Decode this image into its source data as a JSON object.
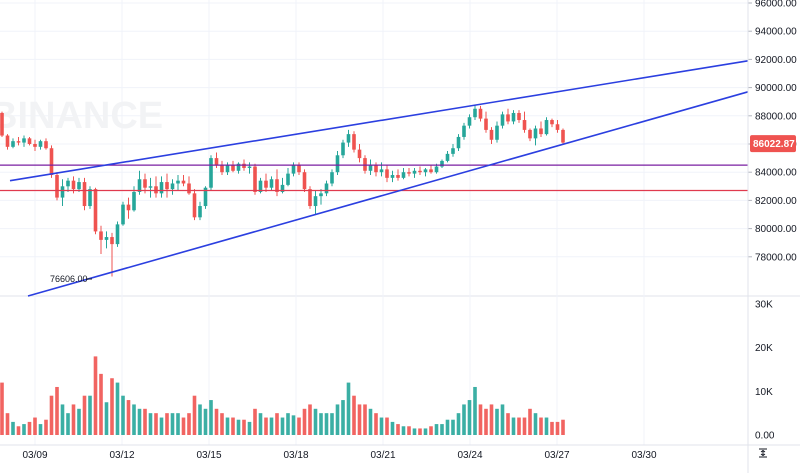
{
  "watermark": "BINANCE",
  "colors": {
    "up": "#26a69a",
    "down": "#ef5350",
    "trendline": "#2b3fe0",
    "support_line": "#e03a4e",
    "resistance_line": "#7a1fa2",
    "last_price_bg": "#ef5350",
    "axis_text": "#131722",
    "grid": "#f0f3fa"
  },
  "last_price_label": "86022.87",
  "low_label": "76606.00",
  "price_axis_ticks": [
    "96000.00",
    "94000.00",
    "92000.00",
    "90000.00",
    "88000.00",
    "86000.00",
    "84000.00",
    "82000.00",
    "80000.00",
    "78000.00"
  ],
  "volume_axis_ticks": [
    "30K",
    "20K",
    "10K",
    "0.00"
  ],
  "date_axis_ticks": [
    "03/09",
    "03/12",
    "03/15",
    "03/18",
    "03/21",
    "03/24",
    "03/27",
    "03/30"
  ],
  "settings_icon": "axis-settings-icon",
  "chart_data": {
    "type": "candlestick",
    "x_unit": "date (4h candles)",
    "y_range": [
      76000,
      96000
    ],
    "volume_range": [
      0,
      30000
    ],
    "horizontal_levels": [
      84500,
      82700
    ],
    "trendlines": [
      {
        "from": [
          "03/08",
          83400
        ],
        "to": [
          "03/31",
          91900
        ]
      },
      {
        "from": [
          "03/08",
          75900
        ],
        "to": [
          "03/31",
          89700
        ]
      }
    ],
    "candles": [
      [
        88200,
        88300,
        86500,
        86600,
        12000
      ],
      [
        86600,
        86700,
        85600,
        85800,
        5000
      ],
      [
        85800,
        86400,
        85700,
        86200,
        3000
      ],
      [
        86200,
        86500,
        85900,
        86100,
        2000
      ],
      [
        86100,
        86600,
        85800,
        86400,
        2500
      ],
      [
        86400,
        86500,
        85900,
        86000,
        3000
      ],
      [
        86000,
        86300,
        85500,
        85800,
        4000
      ],
      [
        85800,
        86300,
        85600,
        86200,
        2500
      ],
      [
        86200,
        86400,
        85600,
        85700,
        3500
      ],
      [
        85700,
        85900,
        83600,
        83800,
        9000
      ],
      [
        83800,
        84000,
        82000,
        82200,
        11000
      ],
      [
        82200,
        83500,
        81600,
        83000,
        7000
      ],
      [
        83000,
        83600,
        82600,
        83400,
        5000
      ],
      [
        83400,
        83700,
        82500,
        82800,
        7000
      ],
      [
        82800,
        83600,
        82600,
        83300,
        6000
      ],
      [
        83300,
        83600,
        81300,
        81600,
        9000
      ],
      [
        81600,
        83000,
        81400,
        82800,
        9000
      ],
      [
        82800,
        82900,
        79600,
        79800,
        18000
      ],
      [
        79800,
        80200,
        78200,
        79200,
        14000
      ],
      [
        79200,
        79800,
        78600,
        79400,
        7500
      ],
      [
        79400,
        79700,
        76606,
        78900,
        13000
      ],
      [
        78900,
        80500,
        78700,
        80300,
        12000
      ],
      [
        80300,
        81900,
        80200,
        81700,
        9000
      ],
      [
        81700,
        82200,
        80700,
        81300,
        8000
      ],
      [
        81300,
        83000,
        81200,
        82600,
        7000
      ],
      [
        82600,
        84100,
        82400,
        83500,
        6000
      ],
      [
        83500,
        83900,
        82500,
        82900,
        6000
      ],
      [
        82900,
        83600,
        82200,
        83000,
        5000
      ],
      [
        83000,
        83700,
        82200,
        82500,
        5000
      ],
      [
        82500,
        83700,
        82200,
        83300,
        4000
      ],
      [
        83300,
        83900,
        82200,
        82800,
        5000
      ],
      [
        82800,
        83500,
        82400,
        83200,
        5000
      ],
      [
        83200,
        83800,
        82700,
        83400,
        5000
      ],
      [
        83400,
        83800,
        83000,
        83200,
        4000
      ],
      [
        83200,
        83700,
        82400,
        82500,
        5000
      ],
      [
        82500,
        82800,
        80600,
        80800,
        9000
      ],
      [
        80800,
        81900,
        80600,
        81600,
        7000
      ],
      [
        81600,
        83000,
        81400,
        82900,
        6000
      ],
      [
        82900,
        85200,
        82700,
        85000,
        8000
      ],
      [
        85000,
        85400,
        84300,
        84500,
        6000
      ],
      [
        84500,
        84800,
        83800,
        84000,
        5000
      ],
      [
        84000,
        84700,
        83800,
        84500,
        4000
      ],
      [
        84500,
        84800,
        84000,
        84100,
        4000
      ],
      [
        84100,
        84700,
        83900,
        84600,
        3500
      ],
      [
        84600,
        84900,
        84100,
        84300,
        3500
      ],
      [
        84300,
        84700,
        83900,
        84400,
        3000
      ],
      [
        84400,
        84600,
        82400,
        82600,
        6000
      ],
      [
        82600,
        83600,
        82500,
        83400,
        5000
      ],
      [
        83400,
        83900,
        82600,
        82900,
        4000
      ],
      [
        82900,
        83700,
        82700,
        83500,
        4000
      ],
      [
        83500,
        84200,
        82300,
        82600,
        5000
      ],
      [
        82600,
        83600,
        82500,
        83100,
        4000
      ],
      [
        83100,
        84300,
        83000,
        83900,
        5000
      ],
      [
        83900,
        84700,
        83700,
        84500,
        4500
      ],
      [
        84500,
        84700,
        83800,
        84000,
        4000
      ],
      [
        84000,
        84200,
        82600,
        82800,
        6000
      ],
      [
        82800,
        83000,
        81400,
        81600,
        7000
      ],
      [
        81600,
        82700,
        81000,
        82300,
        6000
      ],
      [
        82300,
        82800,
        81700,
        82500,
        5000
      ],
      [
        82500,
        83400,
        82300,
        83200,
        5000
      ],
      [
        83200,
        84200,
        83000,
        84000,
        5000
      ],
      [
        84000,
        85500,
        83800,
        85200,
        7000
      ],
      [
        85200,
        86300,
        85000,
        86100,
        8000
      ],
      [
        86100,
        87000,
        85800,
        86700,
        12000
      ],
      [
        86700,
        86900,
        85400,
        85600,
        9000
      ],
      [
        85600,
        86000,
        84700,
        85000,
        7000
      ],
      [
        85000,
        85200,
        83900,
        84100,
        7000
      ],
      [
        84100,
        84900,
        83800,
        84500,
        6000
      ],
      [
        84500,
        84700,
        83700,
        84000,
        5000
      ],
      [
        84000,
        84700,
        83700,
        84200,
        4000
      ],
      [
        84200,
        84500,
        83300,
        83600,
        4000
      ],
      [
        83600,
        84100,
        83300,
        83800,
        3000
      ],
      [
        83800,
        84200,
        83400,
        83600,
        2500
      ],
      [
        83600,
        84300,
        83500,
        84000,
        2000
      ],
      [
        84000,
        84300,
        83700,
        83900,
        2000
      ],
      [
        83900,
        84300,
        83600,
        84100,
        1500
      ],
      [
        84100,
        84400,
        83800,
        84000,
        1500
      ],
      [
        84000,
        84300,
        83700,
        84200,
        1500
      ],
      [
        84200,
        84500,
        83900,
        84000,
        2000
      ],
      [
        84000,
        84600,
        83900,
        84400,
        2500
      ],
      [
        84400,
        84900,
        84300,
        84800,
        2500
      ],
      [
        84800,
        85500,
        84700,
        85300,
        3500
      ],
      [
        85300,
        86000,
        85100,
        85700,
        3500
      ],
      [
        85700,
        86700,
        85500,
        86500,
        5000
      ],
      [
        86500,
        87500,
        86300,
        87300,
        7000
      ],
      [
        87300,
        88100,
        87100,
        87900,
        8000
      ],
      [
        87900,
        88800,
        87700,
        88500,
        11000
      ],
      [
        88500,
        88700,
        87600,
        87800,
        7000
      ],
      [
        87800,
        88300,
        86800,
        87000,
        6000
      ],
      [
        87000,
        87200,
        86000,
        86300,
        7000
      ],
      [
        86300,
        87600,
        86100,
        87300,
        6000
      ],
      [
        87300,
        88300,
        87100,
        88100,
        7000
      ],
      [
        88100,
        88500,
        87400,
        87600,
        5000
      ],
      [
        87600,
        88400,
        87400,
        88200,
        4000
      ],
      [
        88200,
        88400,
        87500,
        87700,
        4000
      ],
      [
        87700,
        88300,
        86800,
        87000,
        4000
      ],
      [
        87000,
        87100,
        86200,
        86400,
        6000
      ],
      [
        86400,
        87300,
        85900,
        87100,
        5000
      ],
      [
        87100,
        87600,
        86500,
        86700,
        4000
      ],
      [
        86700,
        87900,
        86600,
        87700,
        4000
      ],
      [
        87700,
        87800,
        87200,
        87400,
        3000
      ],
      [
        87400,
        87700,
        86800,
        87000,
        3000
      ],
      [
        87000,
        87100,
        86000,
        86100,
        3500
      ]
    ]
  }
}
